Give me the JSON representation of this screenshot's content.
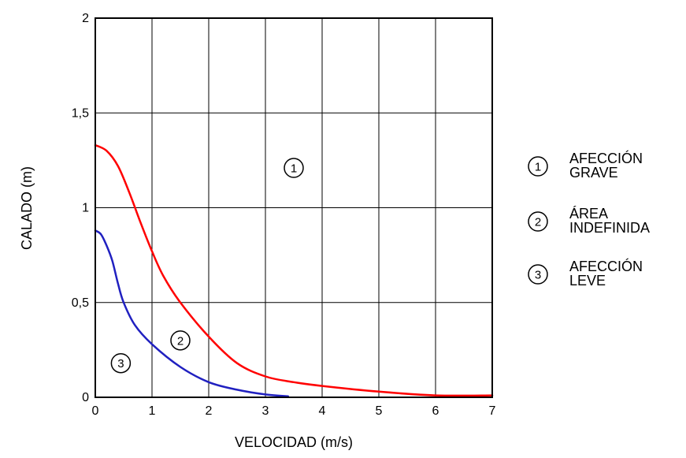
{
  "chart_data": {
    "type": "line",
    "title": "",
    "xlabel": "VELOCIDAD (m/s)",
    "ylabel": "CALADO (m)",
    "xlim": [
      0,
      7
    ],
    "ylim": [
      0,
      2
    ],
    "grid": true,
    "xticks": [
      0,
      1,
      2,
      3,
      4,
      5,
      6,
      7
    ],
    "xtick_labels": [
      "0",
      "1",
      "2",
      "3",
      "4",
      "5",
      "6",
      "7"
    ],
    "yticks": [
      0,
      0.5,
      1,
      1.5,
      2
    ],
    "ytick_labels": [
      "0",
      "0,5",
      "1",
      "1,5",
      "2"
    ],
    "series": [
      {
        "color": "#ff0000",
        "x": [
          0,
          0.2,
          0.4,
          0.6,
          0.8,
          1.0,
          1.2,
          1.5,
          2.0,
          2.5,
          3.0,
          3.5,
          4.0,
          5.0,
          6.0,
          7.0
        ],
        "y": [
          1.33,
          1.3,
          1.22,
          1.08,
          0.92,
          0.77,
          0.64,
          0.5,
          0.32,
          0.18,
          0.11,
          0.08,
          0.06,
          0.03,
          0.01,
          0.01
        ]
      },
      {
        "color": "#2020c0",
        "x": [
          0,
          0.1,
          0.2,
          0.3,
          0.4,
          0.5,
          0.7,
          1.0,
          1.5,
          2.0,
          2.5,
          3.0,
          3.4
        ],
        "y": [
          0.88,
          0.86,
          0.8,
          0.72,
          0.6,
          0.5,
          0.38,
          0.28,
          0.16,
          0.08,
          0.04,
          0.015,
          0.005
        ]
      }
    ],
    "region_markers": [
      {
        "label": "1",
        "x": 3.5,
        "y": 1.21
      },
      {
        "label": "2",
        "x": 1.5,
        "y": 0.3
      },
      {
        "label": "3",
        "x": 0.45,
        "y": 0.18
      }
    ],
    "legend": {
      "placement": "right",
      "items": [
        {
          "symbol": "1",
          "line1": "AFECCIÓN",
          "line2": "GRAVE"
        },
        {
          "symbol": "2",
          "line1": "ÁREA",
          "line2": "INDEFINIDA"
        },
        {
          "symbol": "3",
          "line1": "AFECCIÓN",
          "line2": "LEVE"
        }
      ]
    }
  }
}
